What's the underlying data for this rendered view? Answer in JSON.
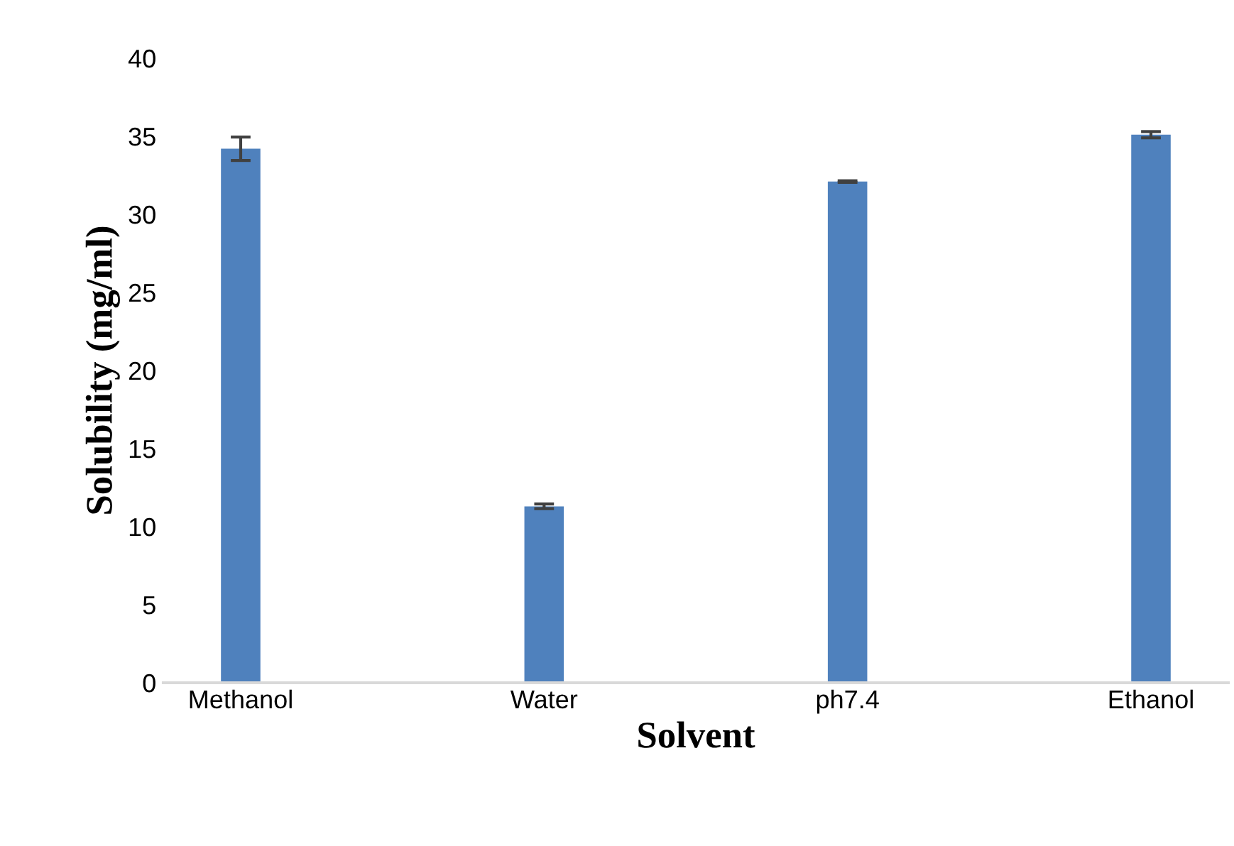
{
  "chart_data": {
    "type": "bar",
    "xlabel": "Solvent",
    "ylabel": "Solubility (mg/ml)",
    "categories": [
      "Methanol",
      "Water",
      "ph7.4",
      "Ethanol"
    ],
    "values": [
      34.2,
      11.3,
      32.1,
      35.1
    ],
    "errors": [
      0.75,
      0.15,
      0.05,
      0.2
    ],
    "color": "#4f81bd",
    "ylim": [
      0,
      40
    ],
    "yticks": [
      0,
      5,
      10,
      15,
      20,
      25,
      30,
      35,
      40
    ],
    "grid": false,
    "legend": false
  }
}
